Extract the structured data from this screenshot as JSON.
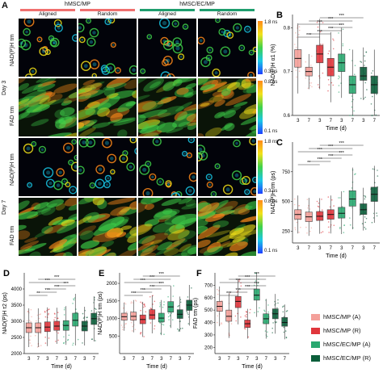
{
  "figure": {
    "panel_a": {
      "letter": "A",
      "groups": [
        {
          "label": "hMSC/MP",
          "color": "#f0706f",
          "subs": [
            "Aligned",
            "Random"
          ]
        },
        {
          "label": "hMSC/EC/MP",
          "color": "#1f9e6e",
          "subs": [
            "Aligned",
            "Random"
          ]
        }
      ],
      "day_labels": [
        "Day 3",
        "Day 7"
      ],
      "rows": [
        {
          "label": "NAD(P)H τm",
          "scale_top": "1.8 ns",
          "scale_bottom": "0.3 ns",
          "kind": "nadh"
        },
        {
          "label": "FAD τm",
          "scale_top": "0.8 ns",
          "scale_bottom": "0.1 ns",
          "kind": "fad"
        },
        {
          "label": "NAD(P)H τm",
          "scale_top": "1.8 ns",
          "scale_bottom": "0.3 ns",
          "kind": "nadh"
        },
        {
          "label": "FAD τm",
          "scale_top": "0.8 ns",
          "scale_bottom": "0.1 ns",
          "kind": "fad"
        }
      ],
      "colors": {
        "blue": "#1f3fff",
        "cyan": "#19c8e6",
        "green": "#3fd24a",
        "yellow": "#f2e21a",
        "orange": "#ff8a1a"
      }
    },
    "legend": {
      "items": [
        {
          "label": "hMSC/MP (A)",
          "color": "#f4a09a"
        },
        {
          "label": "hMSC/MP (R)",
          "color": "#e0363c"
        },
        {
          "label": "hMSC/EC/MP (A)",
          "color": "#2aa870"
        },
        {
          "label": "hMSC/EC/MP (R)",
          "color": "#0b5e3a"
        }
      ]
    }
  },
  "chart_data": [
    {
      "panel": "B",
      "type": "box",
      "ylabel": "NAD(P)H α1 (%)",
      "xlabel": "Time (d)",
      "ylim": [
        0.6,
        0.83
      ],
      "yticks": [
        0.6,
        0.7,
        0.8
      ],
      "x_ticks": [
        "3",
        "7",
        "3",
        "7",
        "3",
        "7",
        "3",
        "7"
      ],
      "medians": [
        0.73,
        0.7,
        0.74,
        0.71,
        0.72,
        0.67,
        0.69,
        0.67
      ],
      "q1": [
        0.71,
        0.69,
        0.72,
        0.69,
        0.7,
        0.65,
        0.68,
        0.65
      ],
      "q3": [
        0.75,
        0.71,
        0.76,
        0.73,
        0.74,
        0.69,
        0.71,
        0.69
      ],
      "sig": [
        "***",
        "***",
        "***",
        "***",
        "***",
        "***",
        "***"
      ]
    },
    {
      "panel": "C",
      "type": "box",
      "ylabel": "NAD(P)H τm (ps)",
      "xlabel": "Time (d)",
      "ylim": [
        150,
        1000
      ],
      "yticks": [
        250,
        500,
        750
      ],
      "x_ticks": [
        "3",
        "7",
        "3",
        "7",
        "3",
        "7",
        "3",
        "7"
      ],
      "medians": [
        390,
        370,
        375,
        390,
        400,
        520,
        430,
        560
      ],
      "q1": [
        350,
        330,
        340,
        350,
        360,
        460,
        390,
        500
      ],
      "q3": [
        430,
        410,
        415,
        430,
        450,
        590,
        480,
        620
      ],
      "sig": [
        "**",
        "***",
        "***",
        "***",
        "***",
        "***",
        "***"
      ]
    },
    {
      "panel": "D",
      "type": "box",
      "ylabel": "NAD(P)H τ2 (ps)",
      "xlabel": "Time (d)",
      "ylim": [
        2000,
        4500
      ],
      "yticks": [
        2000,
        2500,
        3000,
        3500,
        4000
      ],
      "x_ticks": [
        "3",
        "7",
        "3",
        "7",
        "3",
        "7",
        "3",
        "7"
      ],
      "medians": [
        2800,
        2800,
        2820,
        2850,
        2870,
        3030,
        2850,
        3080
      ],
      "q1": [
        2650,
        2650,
        2680,
        2720,
        2720,
        2850,
        2700,
        2900
      ],
      "q3": [
        2950,
        2950,
        2980,
        3000,
        3020,
        3250,
        3000,
        3250
      ],
      "sig": [
        "**",
        "***",
        "***",
        "***",
        "***",
        "***"
      ]
    },
    {
      "panel": "E",
      "type": "box",
      "ylabel": "NAD(P)H τm (ps)",
      "xlabel": "Time (d)",
      "ylim": [
        0,
        2300
      ],
      "yticks": [
        500,
        1000,
        1500,
        2000
      ],
      "x_ticks": [
        "3",
        "7",
        "3",
        "7",
        "3",
        "7",
        "3",
        "7"
      ],
      "medians": [
        1050,
        1060,
        970,
        1100,
        1010,
        1330,
        1120,
        1380
      ],
      "q1": [
        950,
        950,
        850,
        980,
        900,
        1180,
        1000,
        1230
      ],
      "q3": [
        1150,
        1180,
        1100,
        1250,
        1150,
        1480,
        1250,
        1520
      ],
      "sig": [
        "***",
        "***",
        "***",
        "***",
        "***",
        "***",
        "***"
      ]
    },
    {
      "panel": "F",
      "type": "box",
      "ylabel": "FAD τm (ps)",
      "xlabel": "Time (d)",
      "ylim": [
        150,
        800
      ],
      "yticks": [
        200,
        300,
        400,
        500,
        600,
        700
      ],
      "x_ticks": [
        "3",
        "7",
        "3",
        "7",
        "3",
        "7",
        "3",
        "7"
      ],
      "medians": [
        530,
        450,
        570,
        390,
        620,
        430,
        470,
        400
      ],
      "q1": [
        490,
        410,
        520,
        360,
        580,
        390,
        430,
        370
      ],
      "q3": [
        570,
        500,
        610,
        420,
        670,
        470,
        510,
        440
      ],
      "sig": [
        "***",
        "***",
        "***",
        "***",
        "***",
        "***",
        "***"
      ]
    }
  ]
}
